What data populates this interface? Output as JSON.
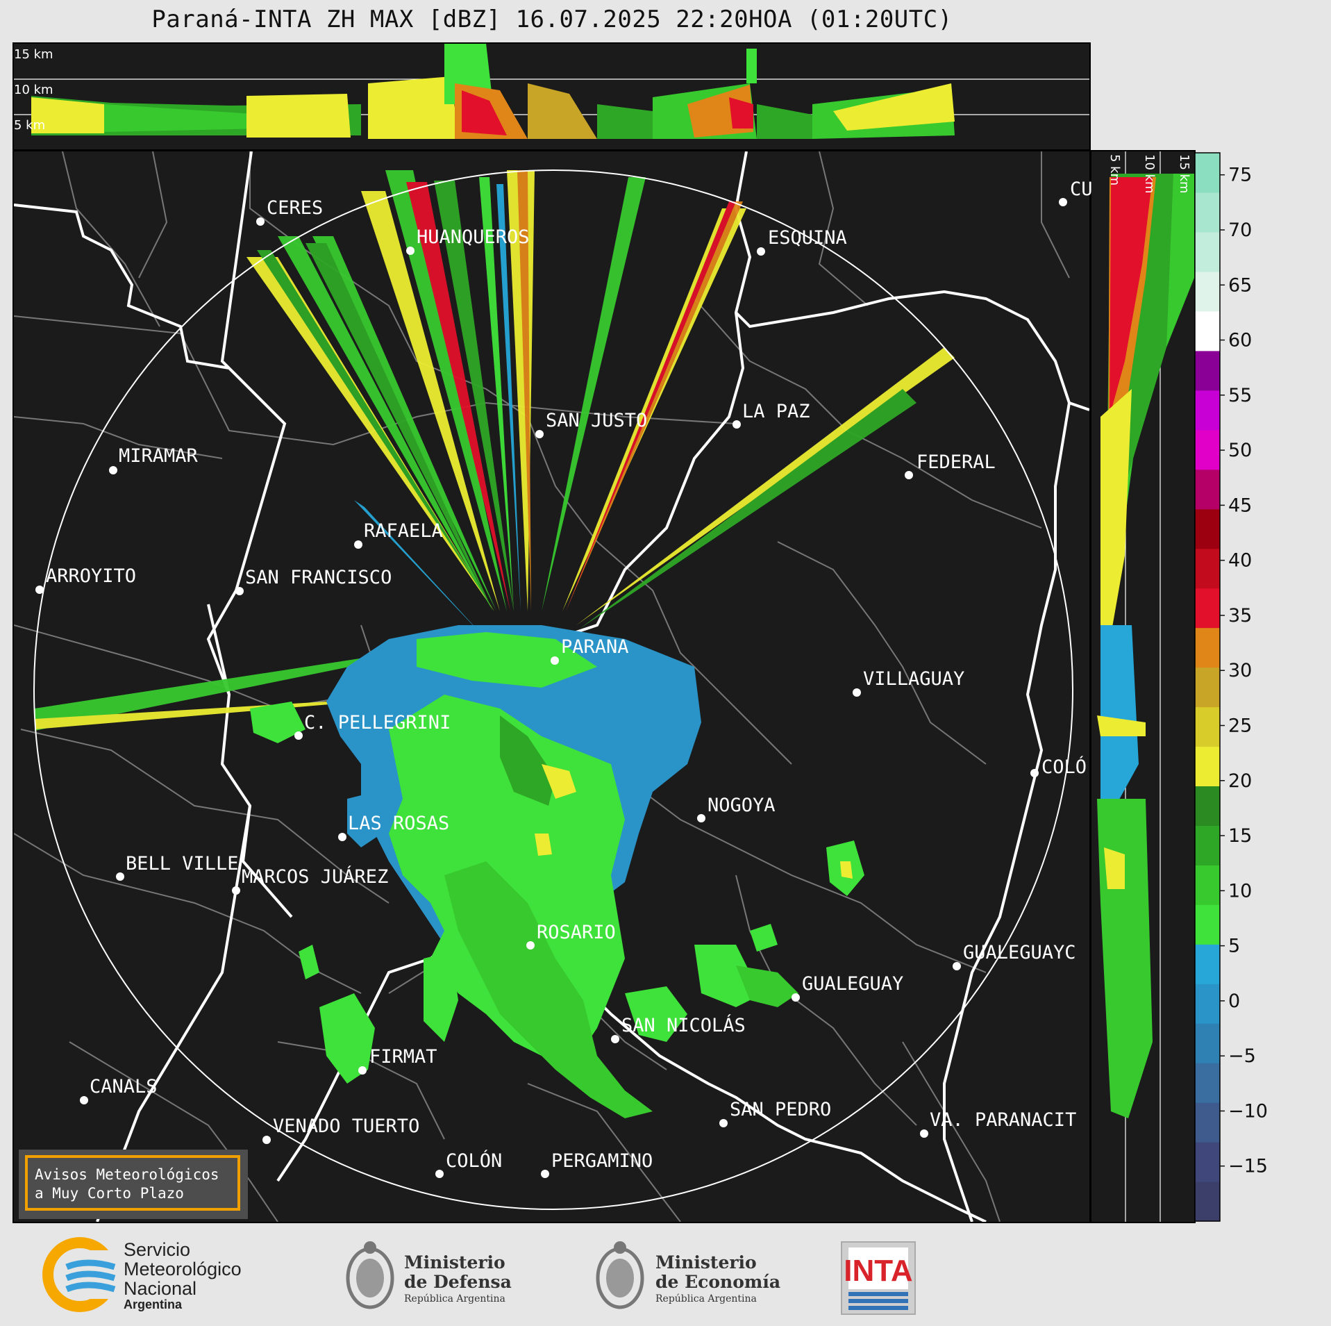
{
  "title": "Paraná-INTA ZH MAX [dBZ] 16.07.2025 22:20HOA (01:20UTC)",
  "side_panel": {
    "top_labels": [
      "15 km",
      "10 km",
      "5 km"
    ],
    "right_labels": [
      "5 km",
      "10 km",
      "15 km"
    ]
  },
  "cities": [
    {
      "name": "CERES"
    },
    {
      "name": "HUANQUEROS"
    },
    {
      "name": "ESQUINA"
    },
    {
      "name": "CU"
    },
    {
      "name": "SAN JUSTO"
    },
    {
      "name": "LA PAZ"
    },
    {
      "name": "MIRAMAR"
    },
    {
      "name": "FEDERAL"
    },
    {
      "name": "RAFAELA"
    },
    {
      "name": "ARROYITO"
    },
    {
      "name": "SAN FRANCISCO"
    },
    {
      "name": "PARANA"
    },
    {
      "name": "VILLAGUAY"
    },
    {
      "name": "C. PELLEGRINI"
    },
    {
      "name": "COLÓ"
    },
    {
      "name": "NOGOYA"
    },
    {
      "name": "LAS ROSAS"
    },
    {
      "name": "BELL VILLE"
    },
    {
      "name": "MARCOS JUÁREZ"
    },
    {
      "name": "ROSARIO"
    },
    {
      "name": "GUALEGUAYC"
    },
    {
      "name": "GUALEGUAY"
    },
    {
      "name": "SAN NICOLÁS"
    },
    {
      "name": "FIRMAT"
    },
    {
      "name": "CANALS"
    },
    {
      "name": "SAN PEDRO"
    },
    {
      "name": "VENADO TUERTO"
    },
    {
      "name": "VA. PARANACIT"
    },
    {
      "name": "COLÓN"
    },
    {
      "name": "PERGAMINO"
    }
  ],
  "colorbar": {
    "ticks": [
      "75",
      "70",
      "65",
      "60",
      "55",
      "50",
      "45",
      "40",
      "35",
      "30",
      "25",
      "20",
      "15",
      "10",
      "5",
      "0",
      "−5",
      "−10",
      "−15"
    ],
    "range": [
      -20,
      77
    ],
    "colors": [
      "#3c3f6a",
      "#40477a",
      "#3f5a8c",
      "#3a6ea0",
      "#2f81b4",
      "#2a93c8",
      "#26a7d8",
      "#3fe23a",
      "#38c92f",
      "#2fa726",
      "#2b8a22",
      "#ecec32",
      "#d8cc2a",
      "#c8a526",
      "#e08618",
      "#e2102a",
      "#c20b1c",
      "#9c0010",
      "#b50068",
      "#e000c8",
      "#c800d6",
      "#8a0096",
      "#ffffff",
      "#dff3ea",
      "#c2ecdc",
      "#a8e6cf",
      "#8cdec0"
    ]
  },
  "legend_box": {
    "line1": "Avisos Meteorológicos",
    "line2": "a Muy Corto Plazo"
  },
  "logos": {
    "smn": [
      "Servicio",
      "Meteorológico",
      "Nacional",
      "Argentina"
    ],
    "defensa": [
      "Ministerio",
      "de Defensa",
      "República Argentina"
    ],
    "economia": [
      "Ministerio",
      "de Economía",
      "República Argentina"
    ],
    "inta": "INTA"
  },
  "colors": {
    "background": "#e6e6e6",
    "map_background": "#1b1b1b",
    "accent_orange": "#f0a000"
  }
}
